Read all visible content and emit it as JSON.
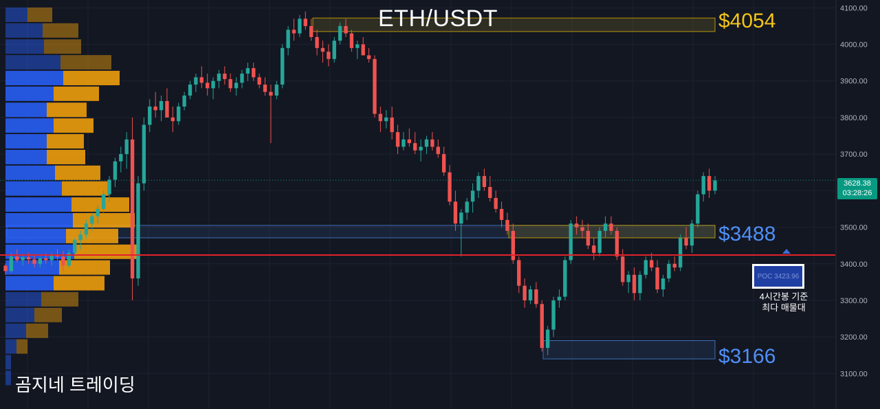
{
  "title": "ETH/USDT",
  "brand": "곰지네 트레이딩",
  "levels": {
    "top": "$4054",
    "mid": "$3488",
    "low": "$3166"
  },
  "poc": {
    "label": "POC  3423.96",
    "value": 3423.96,
    "note_line1": "4시간봉 기준",
    "note_line2": "최다 매물대"
  },
  "current": {
    "price": "3628.38",
    "countdown": "03:28:26",
    "value": 3628.38
  },
  "colors": {
    "background": "#131722",
    "up": "#26a69a",
    "down": "#ef5350",
    "volume_buy": "#2962ff",
    "volume_sell": "#f2a10b",
    "poc_line": "#e0242b",
    "zone_gold": "#b8960c",
    "zone_blue": "#3d6fb4"
  },
  "chart_data": {
    "type": "candlestick",
    "title": "ETH/USDT",
    "ylim": [
      3050,
      4110
    ],
    "y_ticks": [
      "4100.00",
      "4000.00",
      "3900.00",
      "3800.00",
      "3700.00",
      "3600.00",
      "3500.00",
      "3400.00",
      "3300.00",
      "3200.00",
      "3100.00"
    ],
    "zones": [
      {
        "label": "$4054",
        "low": 4035,
        "high": 4072,
        "color": "gold"
      },
      {
        "label": "$3488",
        "low": 3471,
        "high": 3505,
        "color": "blue"
      },
      {
        "label": "$3488",
        "low": 3471,
        "high": 3505,
        "color": "gold"
      },
      {
        "label": "$3166",
        "low": 3140,
        "high": 3190,
        "color": "blue"
      }
    ],
    "poc_price": 3423.96,
    "last_price": 3628.38,
    "volume_profile": [
      {
        "price": 4080,
        "buy": 0.16,
        "sell": 0.18
      },
      {
        "price": 4037,
        "buy": 0.27,
        "sell": 0.26
      },
      {
        "price": 3993,
        "buy": 0.28,
        "sell": 0.27
      },
      {
        "price": 3950,
        "buy": 0.4,
        "sell": 0.37
      },
      {
        "price": 3907,
        "buy": 0.42,
        "sell": 0.41
      },
      {
        "price": 3864,
        "buy": 0.35,
        "sell": 0.33
      },
      {
        "price": 3820,
        "buy": 0.3,
        "sell": 0.29
      },
      {
        "price": 3777,
        "buy": 0.35,
        "sell": 0.29
      },
      {
        "price": 3734,
        "buy": 0.3,
        "sell": 0.27
      },
      {
        "price": 3691,
        "buy": 0.3,
        "sell": 0.28
      },
      {
        "price": 3648,
        "buy": 0.36,
        "sell": 0.33
      },
      {
        "price": 3605,
        "buy": 0.41,
        "sell": 0.34
      },
      {
        "price": 3561,
        "buy": 0.48,
        "sell": 0.42
      },
      {
        "price": 3518,
        "buy": 0.49,
        "sell": 0.45
      },
      {
        "price": 3475,
        "buy": 0.44,
        "sell": 0.38
      },
      {
        "price": 3432,
        "buy": 0.5,
        "sell": 0.46
      },
      {
        "price": 3389,
        "buy": 0.39,
        "sell": 0.37
      },
      {
        "price": 3346,
        "buy": 0.35,
        "sell": 0.37
      },
      {
        "price": 3302,
        "buy": 0.26,
        "sell": 0.27
      },
      {
        "price": 3259,
        "buy": 0.21,
        "sell": 0.2
      },
      {
        "price": 3216,
        "buy": 0.15,
        "sell": 0.16
      },
      {
        "price": 3173,
        "buy": 0.08,
        "sell": 0.08
      },
      {
        "price": 3130,
        "buy": 0.04,
        "sell": 0.0
      },
      {
        "price": 3087,
        "buy": 0.04,
        "sell": 0.0
      }
    ],
    "candles": [
      [
        3395,
        3400,
        3370,
        3380
      ],
      [
        3380,
        3430,
        3375,
        3420
      ],
      [
        3420,
        3440,
        3405,
        3410
      ],
      [
        3410,
        3425,
        3395,
        3418
      ],
      [
        3418,
        3430,
        3400,
        3412
      ],
      [
        3412,
        3422,
        3390,
        3400
      ],
      [
        3400,
        3420,
        3390,
        3415
      ],
      [
        3415,
        3428,
        3400,
        3410
      ],
      [
        3410,
        3430,
        3395,
        3425
      ],
      [
        3425,
        3440,
        3410,
        3420
      ],
      [
        3420,
        3435,
        3380,
        3395
      ],
      [
        3395,
        3440,
        3390,
        3430
      ],
      [
        3430,
        3470,
        3425,
        3465
      ],
      [
        3465,
        3490,
        3440,
        3480
      ],
      [
        3480,
        3520,
        3470,
        3510
      ],
      [
        3510,
        3540,
        3490,
        3530
      ],
      [
        3530,
        3560,
        3510,
        3550
      ],
      [
        3550,
        3600,
        3540,
        3590
      ],
      [
        3590,
        3640,
        3570,
        3630
      ],
      [
        3630,
        3690,
        3610,
        3680
      ],
      [
        3680,
        3720,
        3650,
        3700
      ],
      [
        3700,
        3760,
        3660,
        3740
      ],
      [
        3740,
        3800,
        3300,
        3360
      ],
      [
        3360,
        3640,
        3340,
        3620
      ],
      [
        3620,
        3800,
        3600,
        3780
      ],
      [
        3780,
        3850,
        3760,
        3830
      ],
      [
        3830,
        3870,
        3800,
        3820
      ],
      [
        3820,
        3860,
        3790,
        3845
      ],
      [
        3845,
        3880,
        3810,
        3800
      ],
      [
        3800,
        3830,
        3760,
        3790
      ],
      [
        3790,
        3840,
        3780,
        3830
      ],
      [
        3830,
        3870,
        3820,
        3860
      ],
      [
        3860,
        3900,
        3850,
        3890
      ],
      [
        3890,
        3920,
        3870,
        3910
      ],
      [
        3910,
        3940,
        3880,
        3895
      ],
      [
        3895,
        3920,
        3860,
        3880
      ],
      [
        3880,
        3910,
        3850,
        3900
      ],
      [
        3900,
        3930,
        3880,
        3920
      ],
      [
        3920,
        3940,
        3890,
        3905
      ],
      [
        3905,
        3920,
        3870,
        3880
      ],
      [
        3880,
        3910,
        3860,
        3895
      ],
      [
        3895,
        3930,
        3880,
        3920
      ],
      [
        3920,
        3950,
        3900,
        3935
      ],
      [
        3935,
        3950,
        3900,
        3910
      ],
      [
        3910,
        3920,
        3880,
        3890
      ],
      [
        3890,
        3910,
        3860,
        3870
      ],
      [
        3870,
        3890,
        3730,
        3860
      ],
      [
        3860,
        3900,
        3850,
        3890
      ],
      [
        3890,
        4000,
        3880,
        3990
      ],
      [
        3990,
        4050,
        3970,
        4040
      ],
      [
        4040,
        4070,
        4010,
        4030
      ],
      [
        4030,
        4080,
        4020,
        4070
      ],
      [
        4070,
        4090,
        4040,
        4050
      ],
      [
        4050,
        4070,
        4010,
        4020
      ],
      [
        4020,
        4040,
        3970,
        3990
      ],
      [
        3990,
        4010,
        3950,
        3980
      ],
      [
        3980,
        4000,
        3940,
        3960
      ],
      [
        3960,
        4020,
        3950,
        4010
      ],
      [
        4010,
        4060,
        4000,
        4050
      ],
      [
        4050,
        4070,
        4020,
        4030
      ],
      [
        4030,
        4040,
        3980,
        3990
      ],
      [
        3990,
        4010,
        3960,
        4000
      ],
      [
        4000,
        4020,
        3980,
        3970
      ],
      [
        3970,
        3990,
        3950,
        3960
      ],
      [
        3960,
        3970,
        3800,
        3810
      ],
      [
        3810,
        3830,
        3760,
        3790
      ],
      [
        3790,
        3820,
        3770,
        3800
      ],
      [
        3800,
        3830,
        3740,
        3760
      ],
      [
        3760,
        3780,
        3700,
        3720
      ],
      [
        3720,
        3760,
        3710,
        3740
      ],
      [
        3740,
        3770,
        3720,
        3730
      ],
      [
        3730,
        3760,
        3700,
        3710
      ],
      [
        3710,
        3740,
        3680,
        3720
      ],
      [
        3720,
        3750,
        3700,
        3740
      ],
      [
        3740,
        3760,
        3710,
        3720
      ],
      [
        3720,
        3740,
        3690,
        3700
      ],
      [
        3700,
        3720,
        3640,
        3650
      ],
      [
        3650,
        3670,
        3560,
        3570
      ],
      [
        3570,
        3600,
        3490,
        3510
      ],
      [
        3510,
        3550,
        3420,
        3540
      ],
      [
        3540,
        3580,
        3520,
        3570
      ],
      [
        3570,
        3620,
        3540,
        3600
      ],
      [
        3600,
        3650,
        3580,
        3640
      ],
      [
        3640,
        3660,
        3600,
        3610
      ],
      [
        3610,
        3640,
        3570,
        3580
      ],
      [
        3580,
        3600,
        3540,
        3550
      ],
      [
        3550,
        3570,
        3500,
        3520
      ],
      [
        3520,
        3540,
        3480,
        3490
      ],
      [
        3490,
        3510,
        3400,
        3410
      ],
      [
        3410,
        3420,
        3320,
        3340
      ],
      [
        3340,
        3360,
        3280,
        3300
      ],
      [
        3300,
        3340,
        3290,
        3330
      ],
      [
        3330,
        3350,
        3280,
        3290
      ],
      [
        3290,
        3300,
        3160,
        3170
      ],
      [
        3170,
        3230,
        3150,
        3220
      ],
      [
        3220,
        3310,
        3200,
        3300
      ],
      [
        3300,
        3330,
        3280,
        3310
      ],
      [
        3310,
        3420,
        3300,
        3410
      ],
      [
        3410,
        3520,
        3400,
        3510
      ],
      [
        3510,
        3530,
        3480,
        3500
      ],
      [
        3500,
        3520,
        3470,
        3490
      ],
      [
        3490,
        3510,
        3440,
        3450
      ],
      [
        3450,
        3470,
        3410,
        3430
      ],
      [
        3430,
        3500,
        3420,
        3490
      ],
      [
        3490,
        3530,
        3470,
        3510
      ],
      [
        3510,
        3530,
        3480,
        3490
      ],
      [
        3490,
        3500,
        3410,
        3420
      ],
      [
        3420,
        3440,
        3340,
        3350
      ],
      [
        3350,
        3380,
        3320,
        3370
      ],
      [
        3370,
        3390,
        3300,
        3320
      ],
      [
        3320,
        3380,
        3300,
        3370
      ],
      [
        3370,
        3420,
        3360,
        3410
      ],
      [
        3410,
        3430,
        3380,
        3390
      ],
      [
        3390,
        3410,
        3320,
        3330
      ],
      [
        3330,
        3370,
        3310,
        3360
      ],
      [
        3360,
        3410,
        3350,
        3400
      ],
      [
        3400,
        3420,
        3380,
        3390
      ],
      [
        3390,
        3480,
        3380,
        3470
      ],
      [
        3470,
        3500,
        3440,
        3450
      ],
      [
        3450,
        3520,
        3430,
        3510
      ],
      [
        3510,
        3600,
        3500,
        3590
      ],
      [
        3590,
        3650,
        3570,
        3640
      ],
      [
        3640,
        3660,
        3580,
        3600
      ],
      [
        3600,
        3640,
        3590,
        3628
      ]
    ]
  }
}
